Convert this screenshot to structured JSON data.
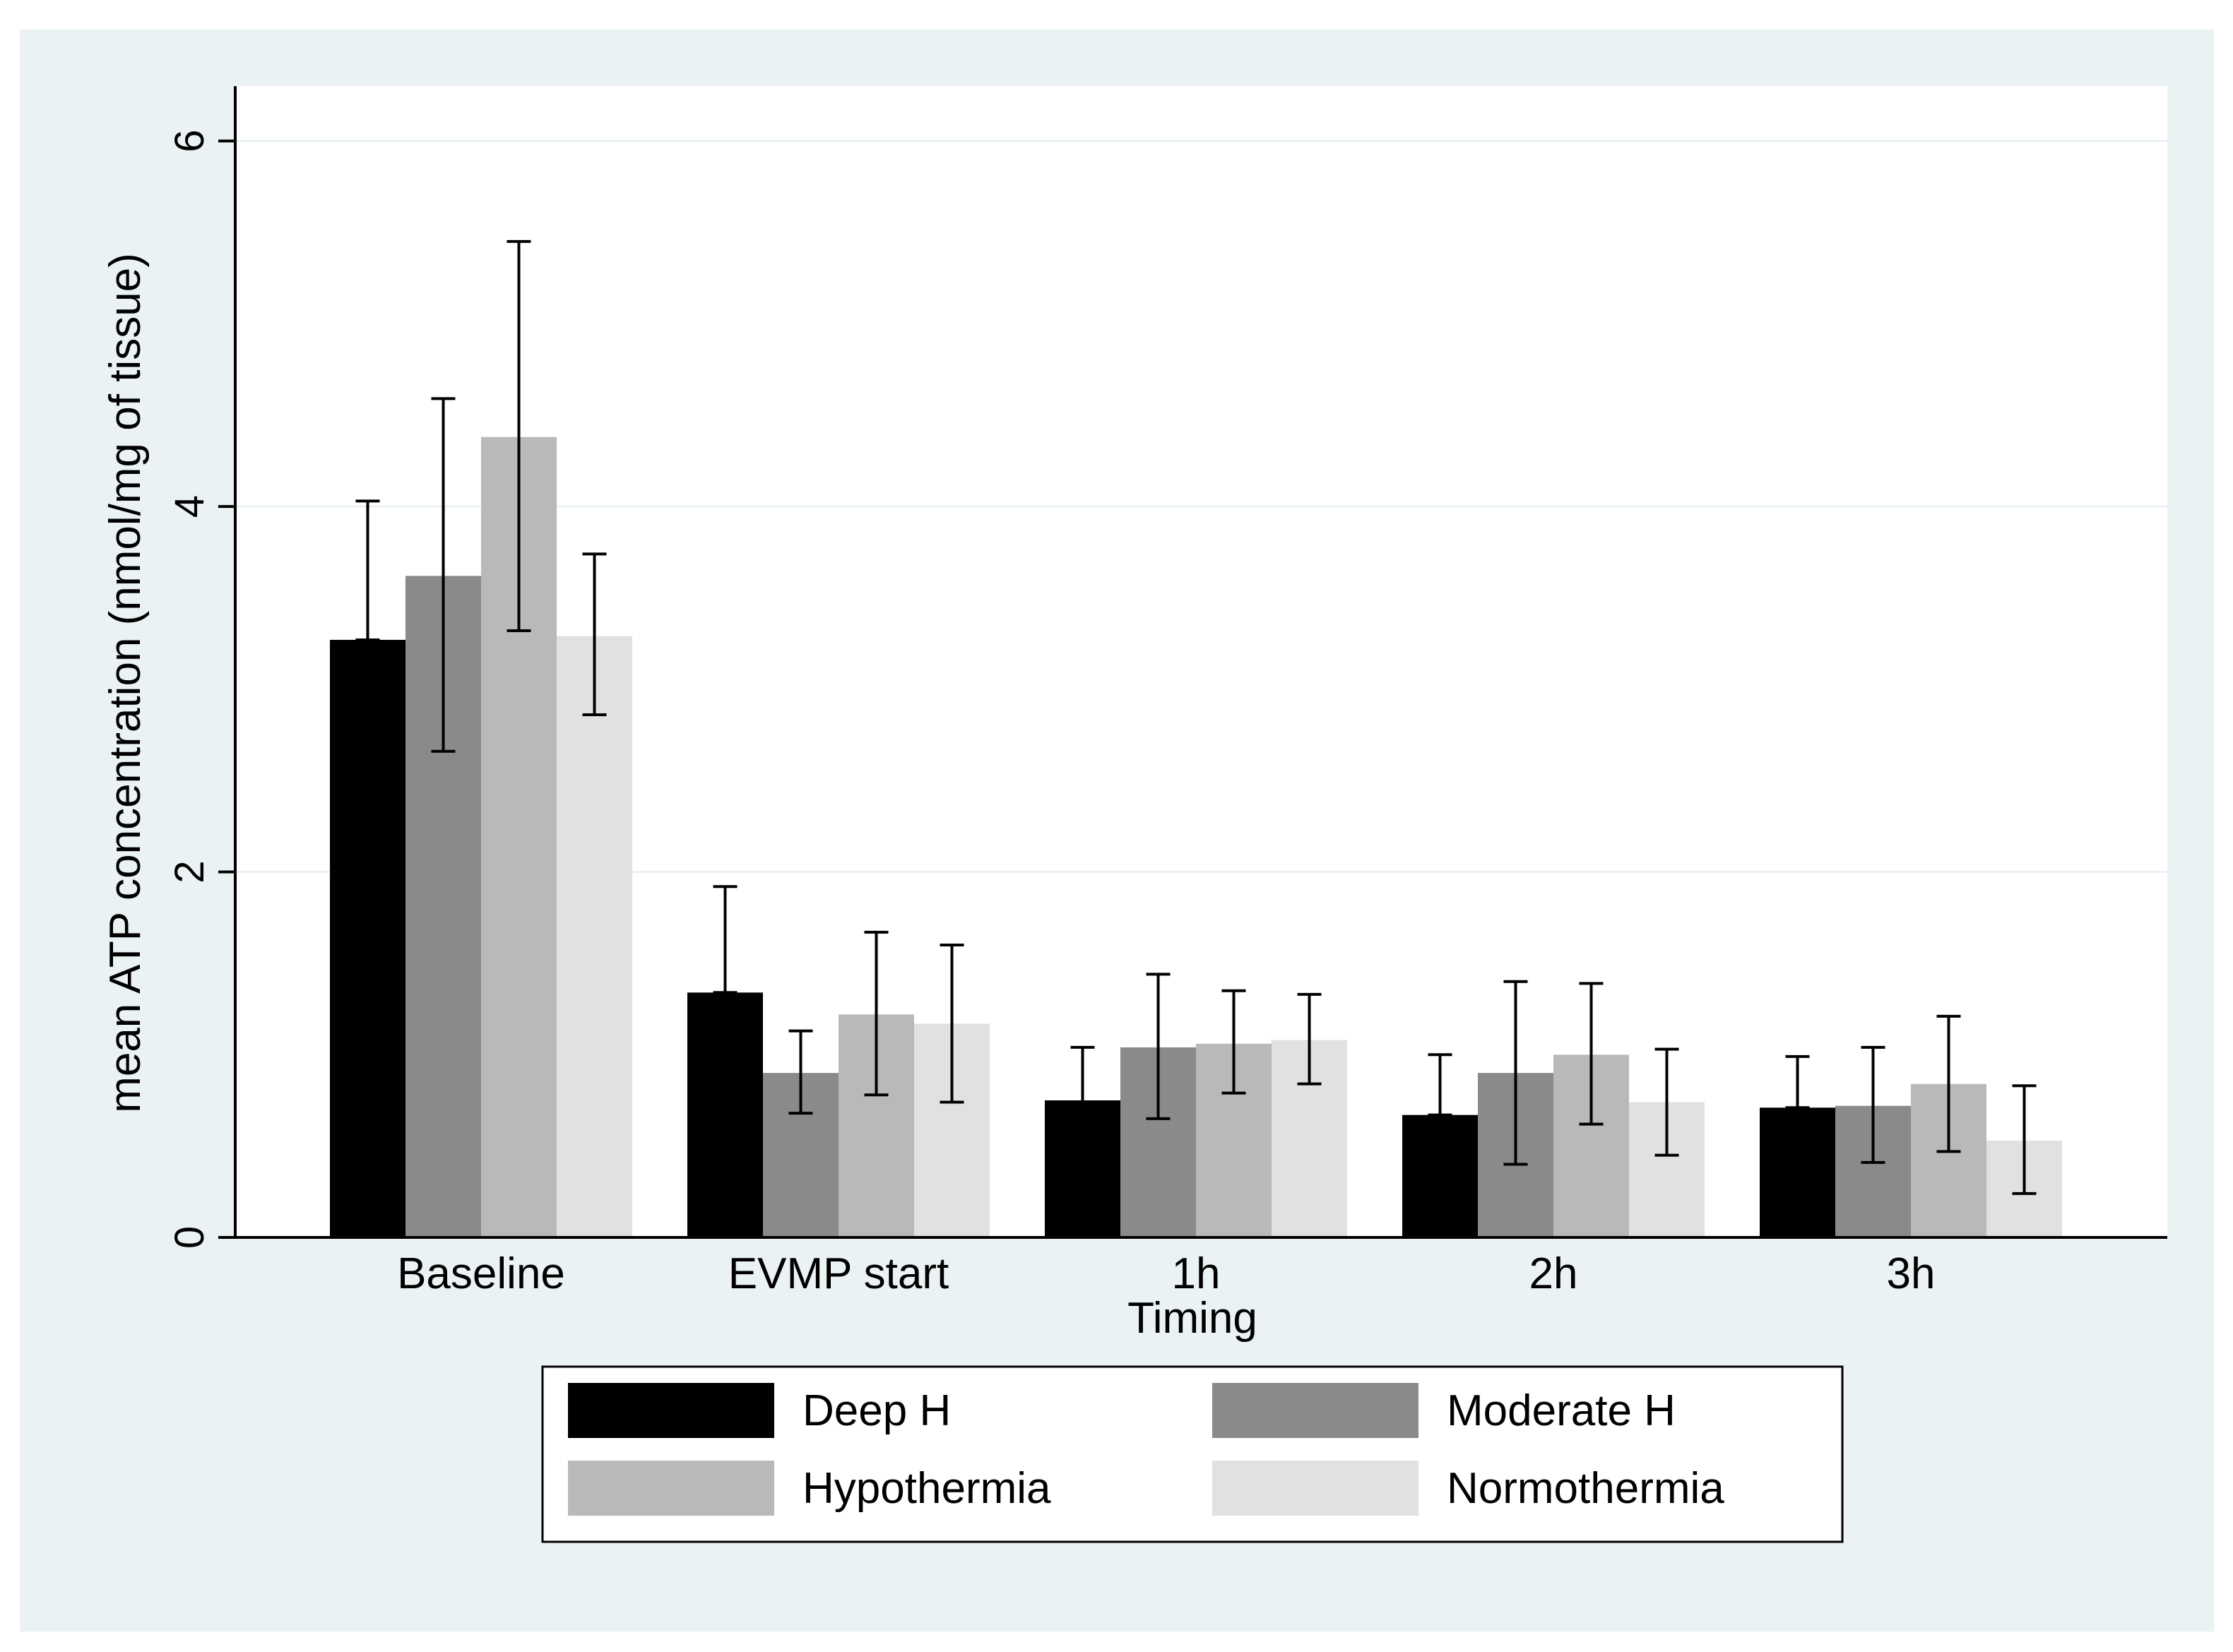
{
  "chart_data": {
    "type": "bar",
    "title": "",
    "xlabel": "Timing",
    "ylabel": "mean ATP concentration (nmol/mg of tissue)",
    "ylim": [
      0,
      6.3
    ],
    "yticks": [
      0,
      2,
      4,
      6
    ],
    "ytick_labels": [
      "0",
      "2",
      "4",
      "6"
    ],
    "grid": true,
    "error_bars": true,
    "categories": [
      "Baseline",
      "EVMP start",
      "1h",
      "2h",
      "3h"
    ],
    "series": [
      {
        "name": "Deep H",
        "color": "#000000",
        "values": [
          3.27,
          1.34,
          0.75,
          0.67,
          0.71
        ],
        "err_low": [
          3.27,
          1.34,
          0.49,
          0.67,
          0.71
        ],
        "err_high": [
          4.03,
          1.92,
          1.04,
          1.0,
          0.99
        ]
      },
      {
        "name": "Moderate H",
        "color": "#8a8a8a",
        "values": [
          3.62,
          0.9,
          1.04,
          0.9,
          0.72
        ],
        "err_low": [
          2.66,
          0.68,
          0.65,
          0.4,
          0.41
        ],
        "err_high": [
          4.59,
          1.13,
          1.44,
          1.4,
          1.04
        ]
      },
      {
        "name": "Hypothermia",
        "color": "#b9b9b9",
        "values": [
          4.38,
          1.22,
          1.06,
          1.0,
          0.84
        ],
        "err_low": [
          3.32,
          0.78,
          0.79,
          0.62,
          0.47
        ],
        "err_high": [
          5.45,
          1.67,
          1.35,
          1.39,
          1.21
        ]
      },
      {
        "name": "Normothermia",
        "color": "#e1e1e1",
        "values": [
          3.29,
          1.17,
          1.08,
          0.74,
          0.53
        ],
        "err_low": [
          2.86,
          0.74,
          0.84,
          0.45,
          0.24
        ],
        "err_high": [
          3.74,
          1.6,
          1.33,
          1.03,
          0.83
        ]
      }
    ],
    "legend": {
      "position": "bottom",
      "columns": 2,
      "frame": true
    }
  }
}
